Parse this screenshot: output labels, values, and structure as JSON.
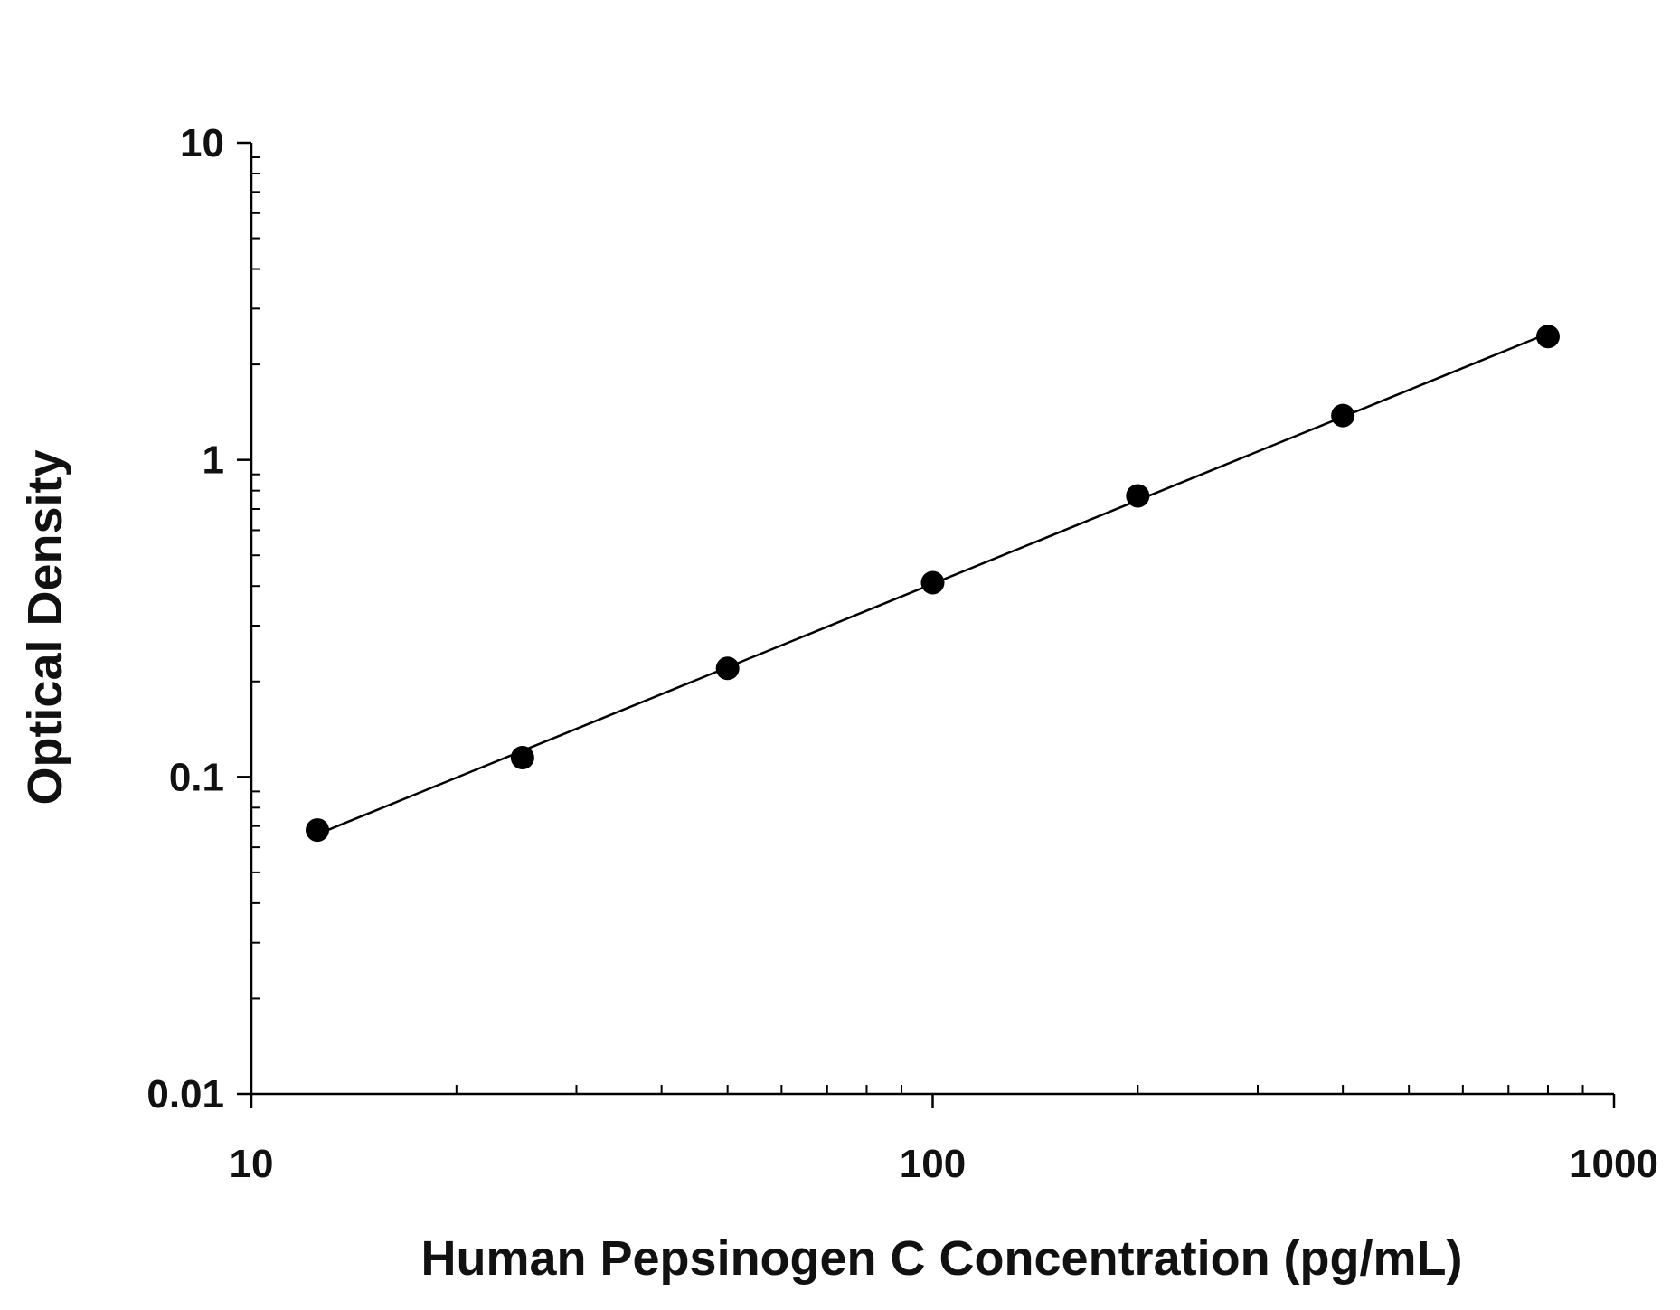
{
  "chart_data": {
    "type": "scatter",
    "title": "",
    "xlabel": "Human Pepsinogen C Concentration (pg/mL)",
    "ylabel": "Optical Density",
    "x_scale": "log",
    "y_scale": "log",
    "xlim": [
      10,
      1000
    ],
    "ylim": [
      0.01,
      10
    ],
    "x_ticks": [
      {
        "value": 10,
        "label": "10"
      },
      {
        "value": 100,
        "label": "100"
      },
      {
        "value": 1000,
        "label": "1000"
      }
    ],
    "y_ticks": [
      {
        "value": 0.01,
        "label": "0.01"
      },
      {
        "value": 0.1,
        "label": "0.1"
      },
      {
        "value": 1,
        "label": "1"
      },
      {
        "value": 10,
        "label": "10"
      }
    ],
    "grid": false,
    "legend": "none",
    "series": [
      {
        "x": [
          12.5,
          25,
          50,
          100,
          200,
          400,
          800
        ],
        "y": [
          0.068,
          0.115,
          0.22,
          0.41,
          0.77,
          1.38,
          2.45
        ],
        "fit_line": true
      }
    ],
    "colors": {
      "marker": "#000000",
      "line": "#000000",
      "axis": "#000000"
    }
  }
}
